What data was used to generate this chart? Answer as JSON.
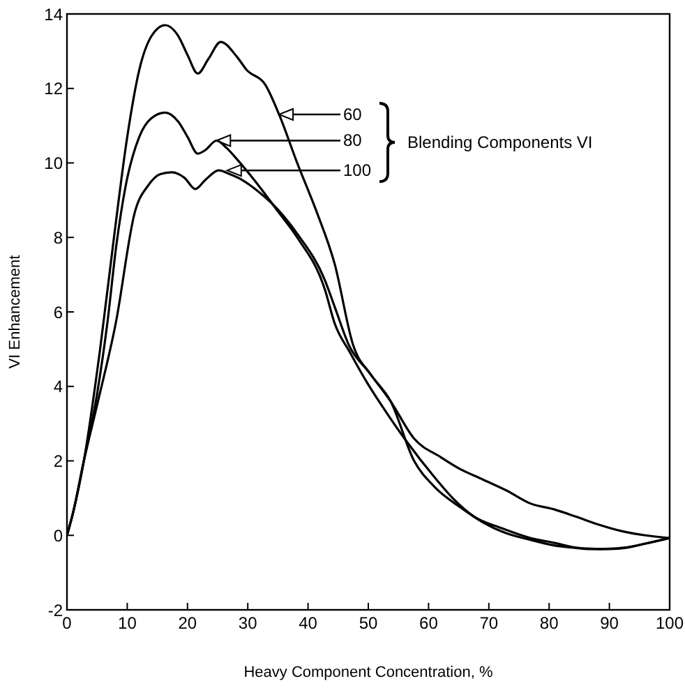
{
  "chart_data": {
    "type": "line",
    "xlabel": "Heavy Component Concentration, %",
    "ylabel": "VI Enhancement",
    "xlim": [
      0,
      100
    ],
    "xticks": [
      0,
      10,
      20,
      30,
      40,
      50,
      60,
      70,
      80,
      90,
      100
    ],
    "ylim": [
      -2,
      14
    ],
    "yticks": [
      -2,
      0,
      2,
      4,
      6,
      8,
      10,
      12,
      14
    ],
    "grid": false,
    "marker": "none",
    "line_style": "solid",
    "series": [
      {
        "color": "#000000",
        "x": [
          0,
          1,
          2.8,
          5.5,
          7.8,
          10,
          12,
          14,
          16.3,
          18.5,
          20,
          21.7,
          23.5,
          25.5,
          28.2,
          29.8,
          32.9,
          35.2,
          38.2,
          41.4,
          44.4,
          47.5,
          50.5,
          53.7,
          57.6,
          61,
          65.3,
          69,
          73,
          76.9,
          80.8,
          84,
          86.8,
          90,
          92.4,
          96,
          100
        ],
        "values": [
          0,
          0.6,
          2,
          5,
          8,
          10.7,
          12.5,
          13.4,
          13.7,
          13.4,
          12.9,
          12.4,
          12.8,
          13.25,
          12.85,
          12.5,
          12.1,
          11.3,
          10,
          8.7,
          7.3,
          5.1,
          4.3,
          3.6,
          2,
          1.3,
          0.75,
          0.35,
          0.05,
          -0.12,
          -0.27,
          -0.33,
          -0.37,
          -0.36,
          -0.33,
          -0.22,
          -0.07
        ]
      },
      {
        "color": "#000000",
        "x": [
          0,
          1,
          2.8,
          5,
          6.7,
          8.2,
          9.7,
          12,
          14,
          16.3,
          18.5,
          20,
          21.7,
          23,
          24.8,
          26.5,
          28.2,
          32,
          35,
          38.2,
          42.8,
          44.4,
          47,
          49.8,
          53,
          56,
          61.3,
          64,
          67.6,
          72,
          76.9,
          80.8,
          84.5,
          87,
          90,
          93,
          96,
          100
        ],
        "values": [
          0,
          0.6,
          2,
          3.8,
          5.7,
          7.8,
          9.35,
          10.7,
          11.2,
          11.35,
          11.1,
          10.7,
          10.25,
          10.35,
          10.6,
          10.4,
          10.1,
          9.35,
          8.7,
          8,
          6.6,
          5.7,
          4.9,
          4.1,
          3.3,
          2.6,
          1.5,
          1,
          0.5,
          0.2,
          -0.07,
          -0.2,
          -0.33,
          -0.36,
          -0.37,
          -0.33,
          -0.22,
          -0.07
        ]
      },
      {
        "color": "#000000",
        "x": [
          0,
          1,
          2.8,
          5,
          8.1,
          11.3,
          13.5,
          15.5,
          17.4,
          19.5,
          21.3,
          23,
          25.2,
          27,
          29,
          32,
          35,
          38.2,
          42.8,
          44.5,
          46.8,
          50,
          53.7,
          57.6,
          62,
          65,
          69,
          73,
          77,
          80.8,
          84.5,
          88,
          92.4,
          96,
          100
        ],
        "values": [
          0,
          0.6,
          2,
          3.5,
          5.7,
          8.7,
          9.4,
          9.7,
          9.75,
          9.6,
          9.3,
          9.55,
          9.8,
          9.7,
          9.55,
          9.2,
          8.75,
          8.1,
          6.85,
          6.1,
          5.1,
          4.4,
          3.6,
          2.6,
          2.1,
          1.8,
          1.5,
          1.2,
          0.85,
          0.7,
          0.5,
          0.3,
          0.1,
          0,
          -0.07
        ]
      }
    ],
    "annotations": [
      "60",
      {
        "text": "80",
        "x": 24.8,
        "y": 10.6
      },
      {
        "text": "100",
        "x": 26.6,
        "y": 9.8
      },
      "Blending Components VI"
    ]
  }
}
